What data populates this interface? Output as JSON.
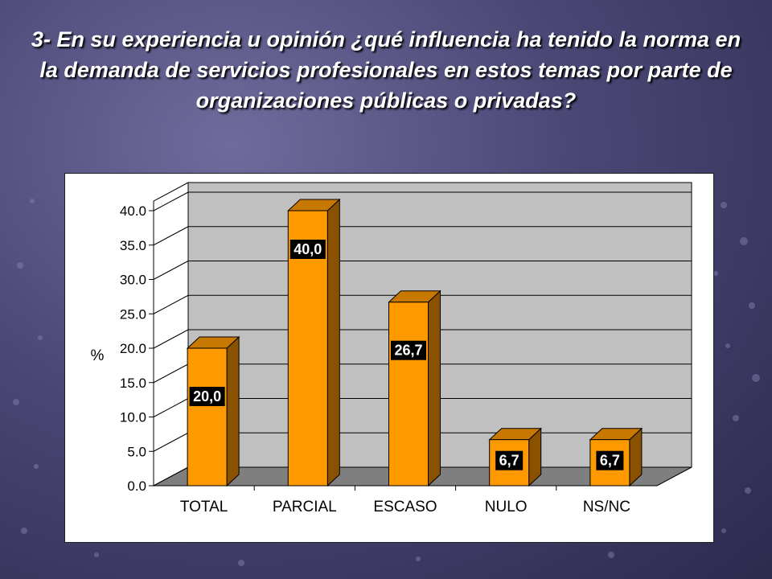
{
  "slide": {
    "title": "3- En su experiencia u opinión ¿qué influencia ha tenido la norma en la demanda de servicios profesionales en estos temas por parte de organizaciones públicas o privadas?"
  },
  "chart_data": {
    "type": "bar",
    "categories": [
      "TOTAL",
      "PARCIAL",
      "ESCASO",
      "NULO",
      "NS/NC"
    ],
    "values": [
      20.0,
      40.0,
      26.7,
      6.7,
      6.7
    ],
    "value_labels": [
      "20,0",
      "40,0",
      "26,7",
      "6,7",
      "6,7"
    ],
    "ylabel": "%",
    "xlabel": "",
    "ylim": [
      0,
      40
    ],
    "yticks": [
      "0.0",
      "5.0",
      "10.0",
      "15.0",
      "20.0",
      "25.0",
      "30.0",
      "35.0",
      "40.0"
    ],
    "ytick_values": [
      0,
      5,
      10,
      15,
      20,
      25,
      30,
      35,
      40
    ],
    "grid": true,
    "three_d": true,
    "colors": {
      "bar_front": "#ff9900",
      "bar_side": "#8a5200",
      "bar_top": "#c77800",
      "back_wall": "#c0c0c0",
      "floor": "#7f7f7f",
      "label_bg": "#000000"
    }
  }
}
